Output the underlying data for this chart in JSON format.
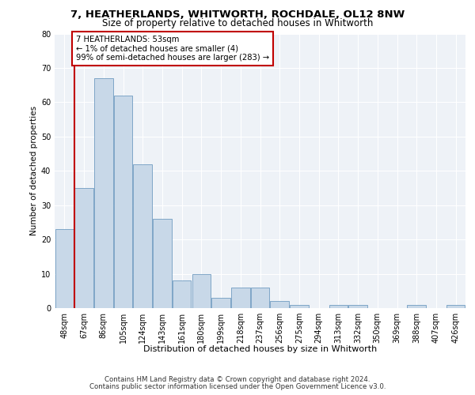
{
  "title1": "7, HEATHERLANDS, WHITWORTH, ROCHDALE, OL12 8NW",
  "title2": "Size of property relative to detached houses in Whitworth",
  "xlabel": "Distribution of detached houses by size in Whitworth",
  "ylabel": "Number of detached properties",
  "categories": [
    "48sqm",
    "67sqm",
    "86sqm",
    "105sqm",
    "124sqm",
    "143sqm",
    "161sqm",
    "180sqm",
    "199sqm",
    "218sqm",
    "237sqm",
    "256sqm",
    "275sqm",
    "294sqm",
    "313sqm",
    "332sqm",
    "350sqm",
    "369sqm",
    "388sqm",
    "407sqm",
    "426sqm"
  ],
  "values": [
    23,
    35,
    67,
    62,
    42,
    26,
    8,
    10,
    3,
    6,
    6,
    2,
    1,
    0,
    1,
    1,
    0,
    0,
    1,
    0,
    1
  ],
  "bar_color": "#c8d8e8",
  "bar_edge_color": "#5b8db8",
  "highlight_color": "#c00000",
  "annotation_text": "7 HEATHERLANDS: 53sqm\n← 1% of detached houses are smaller (4)\n99% of semi-detached houses are larger (283) →",
  "ylim": [
    0,
    80
  ],
  "yticks": [
    0,
    10,
    20,
    30,
    40,
    50,
    60,
    70,
    80
  ],
  "footer1": "Contains HM Land Registry data © Crown copyright and database right 2024.",
  "footer2": "Contains public sector information licensed under the Open Government Licence v3.0.",
  "bg_color": "#eef2f7",
  "grid_color": "#ffffff",
  "property_line_x": 0.5
}
